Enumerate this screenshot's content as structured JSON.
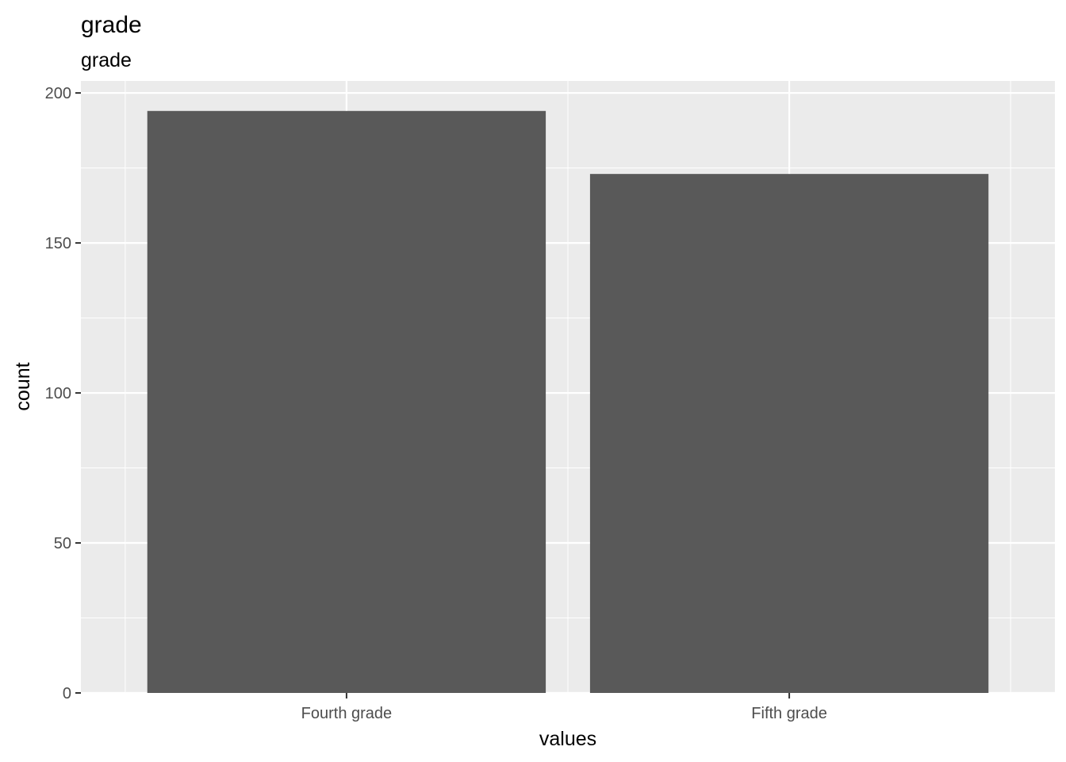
{
  "chart_data": {
    "type": "bar",
    "title": "grade",
    "subtitle": "grade",
    "xlabel": "values",
    "ylabel": "count",
    "categories": [
      "Fourth grade",
      "Fifth grade"
    ],
    "values": [
      194,
      173
    ],
    "ylim": [
      0,
      204
    ],
    "yticks": [
      0,
      50,
      100,
      150,
      200
    ],
    "grid": true,
    "legend": "none",
    "colors": {
      "bar": "#595959",
      "panel": "#ebebeb",
      "grid": "#ffffff",
      "tick_text": "#4d4d4d",
      "tick_mark": "#333333"
    }
  }
}
